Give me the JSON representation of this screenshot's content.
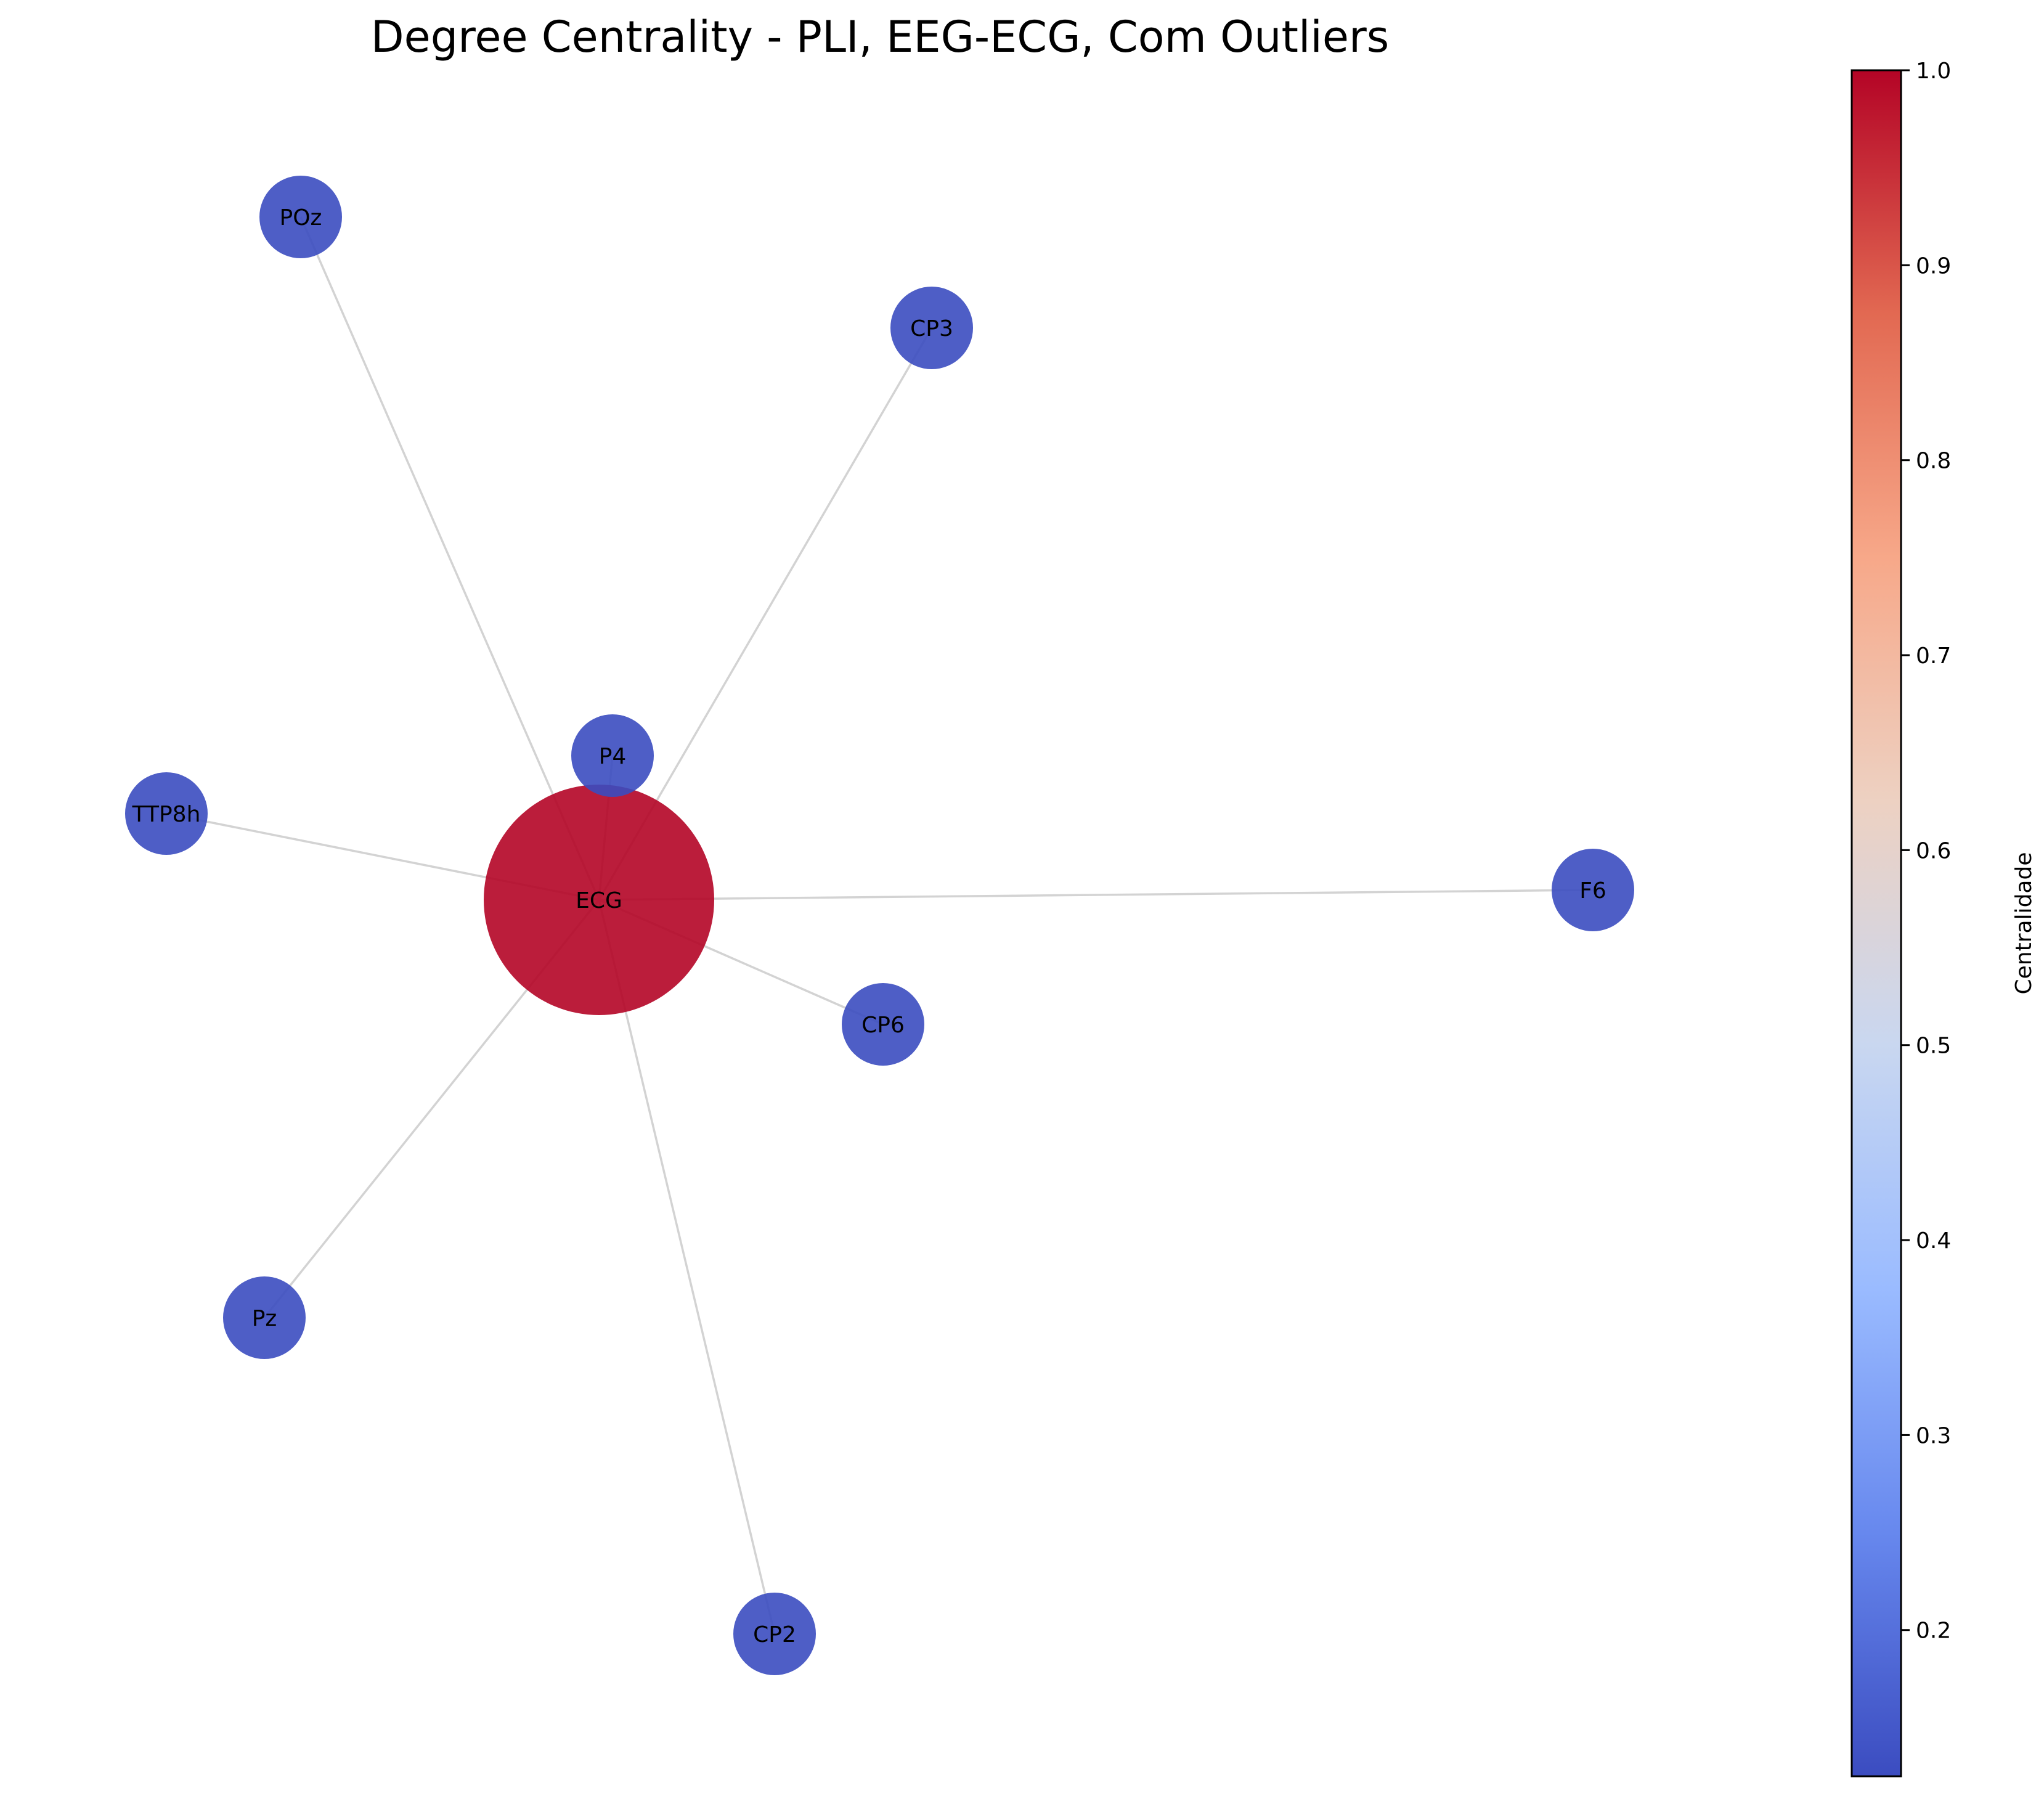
{
  "title": "Degree Centrality - PLI, EEG-ECG, Com Outliers",
  "colorbar": {
    "label": "Centralidade",
    "colormap": "coolwarm",
    "min": 0.125,
    "max": 1.0,
    "ticks": [
      "0.2",
      "0.3",
      "0.4",
      "0.5",
      "0.6",
      "0.7",
      "0.8",
      "0.9",
      "1.0"
    ],
    "gradient_stops": [
      "#3b4cc0",
      "#6788ee",
      "#9abbff",
      "#c9d7f0",
      "#edd1c2",
      "#f7a889",
      "#e26952",
      "#b40426"
    ]
  },
  "network": {
    "nodes": [
      {
        "id": "ECG",
        "label": "ECG",
        "centrality": 1.0,
        "color": "#b40426"
      },
      {
        "id": "POz",
        "label": "POz",
        "centrality": 0.125,
        "color": "#3b4cc0"
      },
      {
        "id": "CP3",
        "label": "CP3",
        "centrality": 0.125,
        "color": "#3b4cc0"
      },
      {
        "id": "P4",
        "label": "P4",
        "centrality": 0.125,
        "color": "#3b4cc0"
      },
      {
        "id": "TTP8h",
        "label": "TTP8h",
        "centrality": 0.125,
        "color": "#3b4cc0"
      },
      {
        "id": "F6",
        "label": "F6",
        "centrality": 0.125,
        "color": "#3b4cc0"
      },
      {
        "id": "CP6",
        "label": "CP6",
        "centrality": 0.125,
        "color": "#3b4cc0"
      },
      {
        "id": "Pz",
        "label": "Pz",
        "centrality": 0.125,
        "color": "#3b4cc0"
      },
      {
        "id": "CP2",
        "label": "CP2",
        "centrality": 0.125,
        "color": "#3b4cc0"
      }
    ],
    "edges": [
      {
        "source": "ECG",
        "target": "POz"
      },
      {
        "source": "ECG",
        "target": "CP3"
      },
      {
        "source": "ECG",
        "target": "P4"
      },
      {
        "source": "ECG",
        "target": "TTP8h"
      },
      {
        "source": "ECG",
        "target": "F6"
      },
      {
        "source": "ECG",
        "target": "CP6"
      },
      {
        "source": "ECG",
        "target": "Pz"
      },
      {
        "source": "ECG",
        "target": "CP2"
      }
    ]
  }
}
